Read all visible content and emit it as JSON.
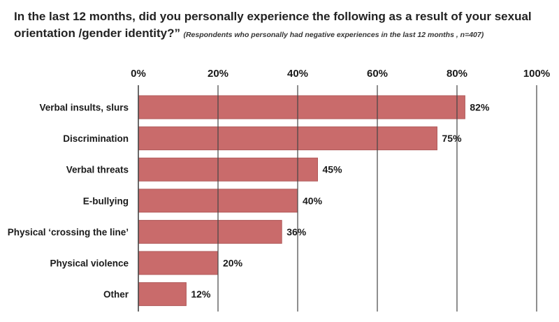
{
  "header": {
    "title": "In the last 12 months, did you personally experience the following as a result of your sexual orientation /gender identity?”",
    "subtitle": "(Respondents who personally had negative experiences in the last 12  months , n=407)"
  },
  "chart_data": {
    "type": "bar",
    "orientation": "horizontal",
    "categories": [
      "Verbal insults, slurs",
      "Discrimination",
      "Verbal threats",
      "E-bullying",
      "Physical ‘crossing the line’",
      "Physical violence",
      "Other"
    ],
    "values": [
      82,
      75,
      45,
      40,
      36,
      20,
      12
    ],
    "value_labels": [
      "82%",
      "75%",
      "45%",
      "40%",
      "36%",
      "20%",
      "12%"
    ],
    "xlim": [
      0,
      100
    ],
    "x_ticks": [
      0,
      20,
      40,
      60,
      80,
      100
    ],
    "x_tick_labels": [
      "0%",
      "20%",
      "40%",
      "60%",
      "80%",
      "100%"
    ],
    "x_axis_position": "top",
    "grid": true,
    "bar_color": "#c96b6b",
    "bar_border_color": "#b15a5a",
    "grid_color": "#444444"
  }
}
